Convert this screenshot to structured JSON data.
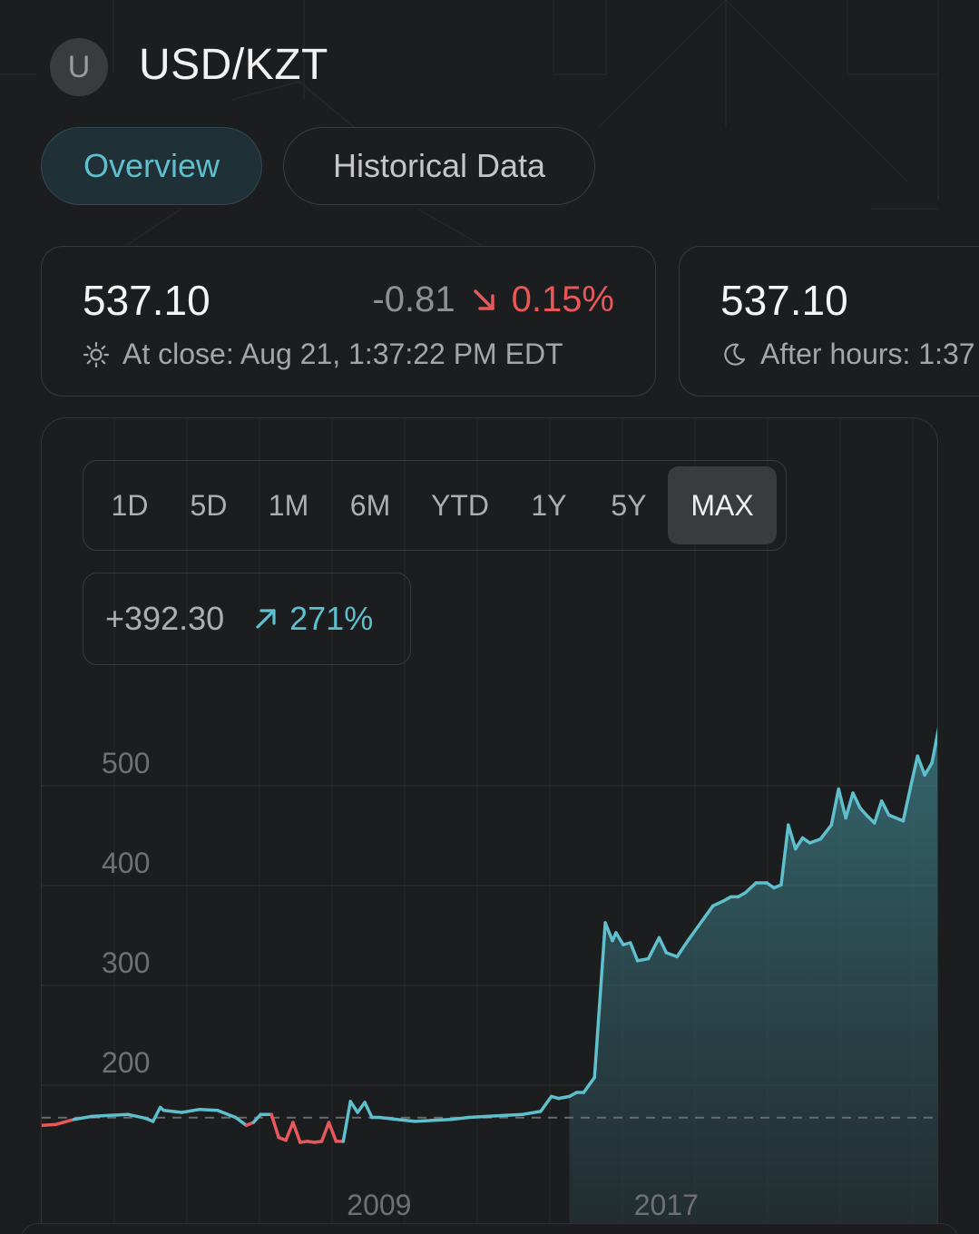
{
  "header": {
    "avatar_letter": "U",
    "title": "USD/KZT"
  },
  "tabs": [
    {
      "label": "Overview",
      "active": true
    },
    {
      "label": "Historical Data",
      "active": false
    }
  ],
  "quotes": {
    "close": {
      "price": "537.10",
      "change": "-0.81",
      "change_pct": "0.15%",
      "direction": "down",
      "time_label": "At close: Aug 21, 1:37:22 PM EDT",
      "icon": "sun-icon"
    },
    "after_hours": {
      "price": "537.10",
      "time_label": "After hours: 1:37",
      "icon": "moon-icon"
    }
  },
  "chart": {
    "ranges": [
      "1D",
      "5D",
      "1M",
      "6M",
      "YTD",
      "1Y",
      "5Y",
      "MAX"
    ],
    "active_range": "MAX",
    "period_change": "+392.30",
    "period_change_pct": "271%"
  },
  "colors": {
    "up": "#5fbfcc",
    "down": "#e8585a",
    "background": "#1c1d1e"
  },
  "chart_data": {
    "type": "area",
    "title": "",
    "xlabel": "",
    "ylabel": "",
    "y_ticks": [
      200,
      300,
      400,
      500
    ],
    "x_ticks": [
      {
        "label": "2009",
        "x": 2009.0
      },
      {
        "label": "2017",
        "x": 2017.0
      }
    ],
    "baseline": 144.8,
    "ylim": [
      110,
      540
    ],
    "xlim": [
      1999.6,
      2024.6
    ],
    "grid": true,
    "series": [
      {
        "x": [
          1999.6,
          2000.0,
          2000.5,
          2001.0,
          2001.5,
          2002.0,
          2002.5,
          2002.7,
          2002.9,
          2003.0,
          2003.5,
          2004.0,
          2004.5,
          2005.0,
          2005.3,
          2005.5,
          2005.7,
          2006.0,
          2006.2,
          2006.4,
          2006.6,
          2006.8,
          2007.0,
          2007.2,
          2007.4,
          2007.6,
          2007.8,
          2008.0,
          2008.2,
          2008.4,
          2008.6,
          2008.8,
          2009.0,
          2009.5,
          2010.0,
          2010.5,
          2011.0,
          2011.5,
          2012.0,
          2012.5,
          2013.0,
          2013.5,
          2013.8,
          2014.0,
          2014.3,
          2014.5,
          2014.7,
          2015.0,
          2015.3,
          2015.5,
          2015.6,
          2015.8,
          2016.0,
          2016.2,
          2016.5,
          2016.8,
          2017.0,
          2017.3,
          2017.6,
          2018.0,
          2018.3,
          2018.6,
          2018.8,
          2019.0,
          2019.2,
          2019.5,
          2019.8,
          2020.0,
          2020.2,
          2020.4,
          2020.6,
          2020.8,
          2021.0,
          2021.3,
          2021.6,
          2021.8,
          2022.0,
          2022.2,
          2022.4,
          2022.6,
          2022.8,
          2023.0,
          2023.2,
          2023.4,
          2023.6,
          2023.8,
          2024.0,
          2024.2,
          2024.4,
          2024.6
        ],
        "values": [
          137.0,
          138.0,
          143.0,
          146.0,
          147.0,
          148.0,
          144.0,
          141.0,
          155.0,
          152.0,
          150.0,
          153.0,
          152.0,
          145.0,
          137.0,
          140.0,
          148.0,
          148.0,
          125.0,
          122.0,
          140.0,
          120.0,
          121.0,
          120.0,
          121.0,
          140.0,
          121.0,
          121.0,
          161.0,
          150.0,
          160.0,
          145.0,
          145.0,
          143.0,
          141.0,
          142.0,
          143.0,
          145.0,
          146.0,
          147.0,
          148.0,
          151.0,
          166.0,
          164.0,
          166.0,
          170.0,
          170.0,
          185.0,
          340.0,
          322.0,
          330.0,
          318.0,
          320.0,
          302.0,
          304.0,
          325.0,
          310.0,
          306.0,
          322.0,
          342.0,
          357.0,
          362.0,
          366.0,
          366.0,
          370.0,
          380.0,
          380.0,
          375.0,
          378.0,
          438.0,
          414.0,
          425.0,
          420.0,
          424.0,
          438.0,
          474.0,
          445.0,
          470.0,
          455.0,
          447.0,
          440.0,
          462.0,
          448.0,
          445.0,
          442.0,
          475.0,
          507.0,
          488.0,
          500.0,
          537.0
        ]
      }
    ]
  }
}
